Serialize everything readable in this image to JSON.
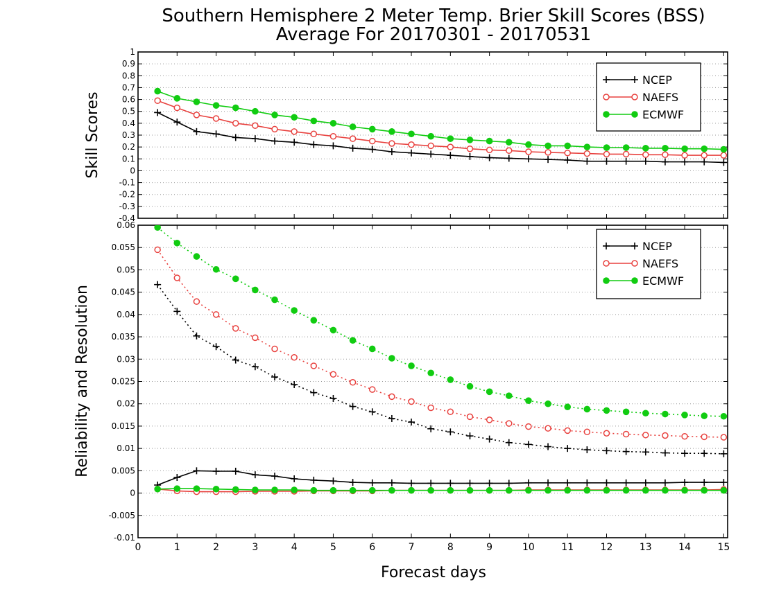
{
  "title_line1": "Southern Hemisphere 2 Meter Temp. Brier Skill Scores (BSS)",
  "title_line2": "Average For 20170301 - 20170531",
  "xlabel": "Forecast days",
  "colors": {
    "NCEP": "#000000",
    "NAEFS": "#e8413e",
    "ECMWF": "#11cc11"
  },
  "chart_data": [
    {
      "type": "line",
      "ylabel": "Skill Scores",
      "xlim": [
        0,
        15.1
      ],
      "ylim": [
        -0.4,
        1.0
      ],
      "yticks": [
        "-0.4",
        "-0.3",
        "-0.2",
        "-0.1",
        "0",
        "0.1",
        "0.2",
        "0.3",
        "0.4",
        "0.5",
        "0.6",
        "0.7",
        "0.8",
        "0.9",
        "1"
      ],
      "xticks": [
        "0",
        "1",
        "2",
        "3",
        "4",
        "5",
        "6",
        "7",
        "8",
        "9",
        "10",
        "11",
        "12",
        "13",
        "14",
        "15"
      ],
      "grid": true,
      "legend": "top-right",
      "x": [
        0.5,
        1,
        1.5,
        2,
        2.5,
        3,
        3.5,
        4,
        4.5,
        5,
        5.5,
        6,
        6.5,
        7,
        7.5,
        8,
        8.5,
        9,
        9.5,
        10,
        10.5,
        11,
        11.5,
        12,
        12.5,
        13,
        13.5,
        14,
        14.5,
        15
      ],
      "series": [
        {
          "name": "NCEP",
          "marker": "plus",
          "style": "solid",
          "values": [
            0.49,
            0.41,
            0.33,
            0.31,
            0.28,
            0.27,
            0.25,
            0.24,
            0.22,
            0.21,
            0.19,
            0.18,
            0.16,
            0.15,
            0.14,
            0.13,
            0.12,
            0.11,
            0.105,
            0.1,
            0.095,
            0.09,
            0.08,
            0.08,
            0.08,
            0.08,
            0.075,
            0.075,
            0.075,
            0.07
          ]
        },
        {
          "name": "NAEFS",
          "marker": "open-circle",
          "style": "solid",
          "values": [
            0.59,
            0.53,
            0.47,
            0.44,
            0.4,
            0.38,
            0.35,
            0.33,
            0.31,
            0.29,
            0.27,
            0.25,
            0.23,
            0.22,
            0.21,
            0.2,
            0.185,
            0.175,
            0.17,
            0.16,
            0.155,
            0.15,
            0.145,
            0.14,
            0.14,
            0.135,
            0.135,
            0.13,
            0.13,
            0.13
          ]
        },
        {
          "name": "ECMWF",
          "marker": "filled-circle",
          "style": "solid",
          "values": [
            0.67,
            0.61,
            0.58,
            0.55,
            0.53,
            0.5,
            0.47,
            0.45,
            0.42,
            0.4,
            0.37,
            0.35,
            0.33,
            0.31,
            0.29,
            0.27,
            0.26,
            0.25,
            0.24,
            0.22,
            0.21,
            0.21,
            0.2,
            0.195,
            0.195,
            0.19,
            0.19,
            0.185,
            0.185,
            0.18
          ]
        }
      ]
    },
    {
      "type": "line",
      "ylabel": "Reliability and Resolution",
      "xlim": [
        0,
        15.1
      ],
      "ylim": [
        -0.01,
        0.06
      ],
      "yticks": [
        "-0.01",
        "-0.005",
        "0",
        "0.005",
        "0.01",
        "0.015",
        "0.02",
        "0.025",
        "0.03",
        "0.035",
        "0.04",
        "0.045",
        "0.05",
        "0.055",
        "0.06"
      ],
      "xticks": [
        "0",
        "1",
        "2",
        "3",
        "4",
        "5",
        "6",
        "7",
        "8",
        "9",
        "10",
        "11",
        "12",
        "13",
        "14",
        "15"
      ],
      "grid": true,
      "legend": "top-right",
      "x": [
        0.5,
        1,
        1.5,
        2,
        2.5,
        3,
        3.5,
        4,
        4.5,
        5,
        5.5,
        6,
        6.5,
        7,
        7.5,
        8,
        8.5,
        9,
        9.5,
        10,
        10.5,
        11,
        11.5,
        12,
        12.5,
        13,
        13.5,
        14,
        14.5,
        15
      ],
      "series": [
        {
          "name": "NCEP",
          "marker": "plus",
          "style": "dotted",
          "values": [
            0.0467,
            0.0407,
            0.0352,
            0.0328,
            0.0298,
            0.0283,
            0.026,
            0.0243,
            0.0225,
            0.0212,
            0.0194,
            0.0182,
            0.0167,
            0.0159,
            0.0144,
            0.0137,
            0.0128,
            0.0121,
            0.0113,
            0.0109,
            0.0104,
            0.01,
            0.0097,
            0.0095,
            0.0093,
            0.0092,
            0.009,
            0.0089,
            0.0089,
            0.0088
          ]
        },
        {
          "name": "NAEFS",
          "marker": "open-circle",
          "style": "dotted",
          "values": [
            0.0545,
            0.0482,
            0.0429,
            0.04,
            0.0369,
            0.0348,
            0.0323,
            0.0304,
            0.0285,
            0.0266,
            0.0248,
            0.0232,
            0.0216,
            0.0205,
            0.0191,
            0.0182,
            0.0171,
            0.0164,
            0.0156,
            0.0149,
            0.0145,
            0.014,
            0.0137,
            0.0134,
            0.0132,
            0.013,
            0.0129,
            0.0127,
            0.0126,
            0.0125
          ]
        },
        {
          "name": "ECMWF",
          "marker": "filled-circle",
          "style": "dotted",
          "values": [
            0.0595,
            0.056,
            0.053,
            0.0501,
            0.048,
            0.0455,
            0.0433,
            0.0409,
            0.0387,
            0.0365,
            0.0342,
            0.0323,
            0.0302,
            0.0285,
            0.0269,
            0.0254,
            0.0239,
            0.0227,
            0.0218,
            0.0207,
            0.02,
            0.0193,
            0.0188,
            0.0185,
            0.0182,
            0.0179,
            0.0177,
            0.0175,
            0.0173,
            0.0172
          ]
        },
        {
          "name": "NCEP",
          "legend": false,
          "marker": "plus",
          "style": "solid",
          "values": [
            0.0018,
            0.0035,
            0.005,
            0.0049,
            0.0049,
            0.0041,
            0.0038,
            0.0032,
            0.0029,
            0.0027,
            0.0024,
            0.0023,
            0.0023,
            0.0022,
            0.0022,
            0.0022,
            0.0022,
            0.0022,
            0.0022,
            0.0023,
            0.0023,
            0.0023,
            0.0023,
            0.0023,
            0.0023,
            0.0023,
            0.0023,
            0.0024,
            0.0024,
            0.0024
          ]
        },
        {
          "name": "NAEFS",
          "legend": false,
          "marker": "open-circle",
          "style": "solid",
          "values": [
            0.0009,
            0.0005,
            0.0003,
            0.0003,
            0.0003,
            0.0004,
            0.0004,
            0.0004,
            0.0005,
            0.0005,
            0.0005,
            0.0005,
            0.0006,
            0.0006,
            0.0006,
            0.0006,
            0.0006,
            0.0006,
            0.0006,
            0.0007,
            0.0007,
            0.0007,
            0.0007,
            0.0007,
            0.0007,
            0.0007,
            0.0007,
            0.0007,
            0.0007,
            0.0008
          ]
        },
        {
          "name": "ECMWF",
          "legend": false,
          "marker": "filled-circle",
          "style": "solid",
          "values": [
            0.0009,
            0.001,
            0.001,
            0.0009,
            0.0008,
            0.0007,
            0.0007,
            0.0007,
            0.0006,
            0.0006,
            0.0006,
            0.0006,
            0.0006,
            0.0006,
            0.0006,
            0.0006,
            0.0006,
            0.0006,
            0.0006,
            0.0006,
            0.0006,
            0.0006,
            0.0006,
            0.0006,
            0.0006,
            0.0006,
            0.0006,
            0.0006,
            0.0006,
            0.0006
          ]
        }
      ]
    }
  ]
}
